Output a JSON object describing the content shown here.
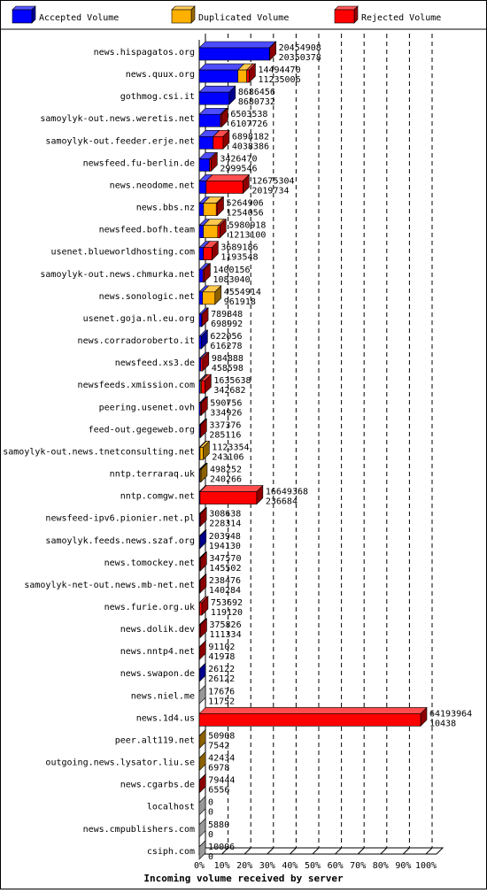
{
  "colors": {
    "accepted": "#0000ff",
    "duplicated": "#ffb000",
    "rejected": "#ff0000",
    "dup_stack": "#b8860b",
    "frame": "#000000",
    "background": "#ffffff"
  },
  "legend": [
    {
      "key": "accepted",
      "label": "Accepted Volume"
    },
    {
      "key": "duplicated",
      "label": "Duplicated Volume"
    },
    {
      "key": "rejected",
      "label": "Rejected Volume"
    }
  ],
  "chart_data": {
    "type": "bar",
    "orientation": "horizontal",
    "stacked": true,
    "title": "",
    "xlabel": "Incoming volume received by server",
    "ylabel": "",
    "xlim": [
      0,
      100
    ],
    "xticks": [
      "0%",
      "10%",
      "20%",
      "30%",
      "40%",
      "50%",
      "60%",
      "70%",
      "80%",
      "90%",
      "100%"
    ],
    "grid": true,
    "legend_position": "top",
    "categories": [
      "news.hispagatos.org",
      "news.quux.org",
      "gothmog.csi.it",
      "samoylyk-out.news.weretis.net",
      "samoylyk-out.feeder.erje.net",
      "newsfeed.fu-berlin.de",
      "news.neodome.net",
      "news.bbs.nz",
      "newsfeed.bofh.team",
      "usenet.blueworldhosting.com",
      "samoylyk-out.news.chmurka.net",
      "news.sonologic.net",
      "usenet.goja.nl.eu.org",
      "news.corradoroberto.it",
      "newsfeed.xs3.de",
      "newsfeeds.xmission.com",
      "peering.usenet.ovh",
      "feed-out.gegeweb.org",
      "samoylyk-out.news.tnetconsulting.net",
      "nntp.terraraq.uk",
      "nntp.comgw.net",
      "newsfeed-ipv6.pionier.net.pl",
      "samoylyk.feeds.news.szaf.org",
      "news.tomockey.net",
      "samoylyk-net-out.news.mb-net.net",
      "news.furie.org.uk",
      "news.dolik.dev",
      "news.nntp4.net",
      "news.swapon.de",
      "news.niel.me",
      "news.1d4.us",
      "peer.alt119.net",
      "outgoing.news.lysator.liu.se",
      "news.cgarbs.de",
      "localhost",
      "news.cmpublishers.com",
      "csiph.com"
    ],
    "total_volume": [
      "20454908",
      "14494470",
      "8686456",
      "6503538",
      "6898182",
      "3426470",
      "12675304",
      "5264906",
      "5980918",
      "3689186",
      "1400156",
      "4554914",
      "789848",
      "622056",
      "984888",
      "1635638",
      "590756",
      "337376",
      "1123354",
      "498252",
      "16649368",
      "308638",
      "203948",
      "347570",
      "238476",
      "753692",
      "375826",
      "91102",
      "26122",
      "17676",
      "64193964",
      "50908",
      "42434",
      "79444",
      "0",
      "5880",
      "10006"
    ],
    "accepted_volume": [
      "20350378",
      "11235006",
      "8680732",
      "6107726",
      "4038386",
      "2999546",
      "2019734",
      "1254056",
      "1213100",
      "1193548",
      "1083040",
      "961918",
      "698992",
      "616278",
      "458598",
      "342682",
      "334926",
      "285116",
      "243106",
      "240266",
      "236684",
      "228314",
      "194130",
      "145502",
      "140284",
      "119120",
      "111334",
      "41978",
      "26122",
      "11752",
      "10438",
      "7542",
      "6978",
      "6556",
      "0",
      "0",
      "0"
    ],
    "series": [
      {
        "name": "Accepted Volume",
        "key": "accepted",
        "values": [
          99.5,
          77.5,
          99.9,
          93.9,
          58.5,
          87.5,
          15.9,
          23.8,
          20.3,
          32.4,
          77.4,
          21.1,
          88.5,
          99.1,
          46.6,
          21.0,
          56.7,
          84.5,
          21.6,
          48.2,
          1.4,
          74.0,
          95.2,
          41.9,
          58.8,
          15.8,
          29.6,
          46.1,
          100,
          66.5,
          0.02,
          14.8,
          16.4,
          8.3,
          0,
          0,
          0
        ]
      },
      {
        "name": "Duplicated Volume",
        "key": "duplicated",
        "values": [
          0,
          17.5,
          0.1,
          1.0,
          0.5,
          0.5,
          0,
          70.0,
          69.7,
          1.0,
          0,
          78.9,
          0,
          0.9,
          0,
          19.0,
          0,
          0,
          78.4,
          51.8,
          0,
          0,
          4.8,
          0,
          0,
          0,
          0,
          0,
          0,
          33.5,
          0,
          85.2,
          83.6,
          0,
          0,
          100,
          100
        ]
      },
      {
        "name": "Rejected Volume",
        "key": "rejected",
        "values": [
          0.5,
          5.0,
          0,
          5.1,
          41.0,
          12.0,
          84.1,
          6.2,
          10.0,
          66.6,
          22.6,
          0,
          11.5,
          0,
          53.4,
          60.0,
          43.3,
          15.5,
          0,
          0,
          98.6,
          26.0,
          0,
          58.1,
          41.2,
          84.2,
          70.4,
          53.9,
          0,
          0,
          99.98,
          0,
          0,
          91.7,
          0,
          0,
          0
        ]
      }
    ],
    "bar_width_ratio": [
      0.3186,
      0.2258,
      0.1353,
      0.1013,
      0.1075,
      0.0534,
      0.1975,
      0.082,
      0.0932,
      0.0575,
      0.0218,
      0.071,
      0.0123,
      0.0097,
      0.0153,
      0.0255,
      0.0092,
      0.0053,
      0.0175,
      0.0078,
      0.2594,
      0.0048,
      0.0032,
      0.0054,
      0.0037,
      0.0117,
      0.0059,
      0.0014,
      0.0004,
      0.0003,
      1.0,
      0.0008,
      0.0007,
      0.0012,
      0,
      0.0001,
      0.0002
    ]
  }
}
